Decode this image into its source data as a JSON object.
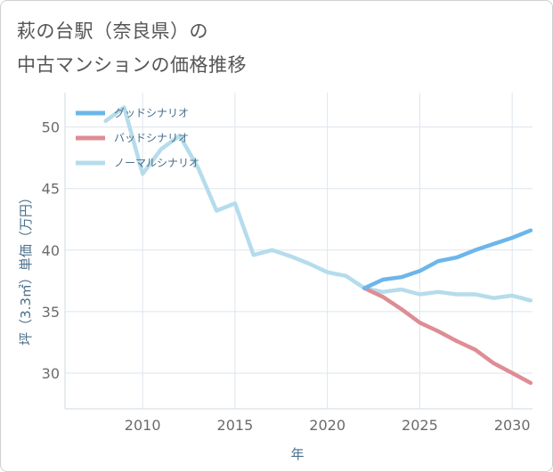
{
  "title_line1": "萩の台駅（奈良県）の",
  "title_line2": "中古マンションの価格推移",
  "chart_data": {
    "type": "line",
    "xlabel": "年",
    "ylabel": "坪（3.3㎡）単価（万円）",
    "xlim": [
      2005.8,
      2031.1
    ],
    "ylim": [
      27.1,
      52.8
    ],
    "xticks": [
      2010,
      2015,
      2020,
      2025,
      2030
    ],
    "yticks": [
      30,
      35,
      40,
      45,
      50
    ],
    "grid": true,
    "legend_position": "top-left",
    "series": [
      {
        "name": "グッドシナリオ",
        "color": "#6cb6ea",
        "x": [
          2022,
          2023,
          2024,
          2025,
          2026,
          2027,
          2028,
          2029,
          2030,
          2031
        ],
        "y": [
          36.9,
          37.6,
          37.8,
          38.3,
          39.1,
          39.4,
          40.0,
          40.5,
          41.0,
          41.6
        ]
      },
      {
        "name": "バッドシナリオ",
        "color": "#de8d95",
        "x": [
          2022,
          2023,
          2024,
          2025,
          2026,
          2027,
          2028,
          2029,
          2030,
          2031
        ],
        "y": [
          36.9,
          36.2,
          35.2,
          34.1,
          33.4,
          32.6,
          31.9,
          30.8,
          30.0,
          29.2
        ]
      },
      {
        "name": "ノーマルシナリオ",
        "color": "#b5dcec",
        "x": [
          2008,
          2009,
          2010,
          2011,
          2012,
          2013,
          2014,
          2015,
          2016,
          2017,
          2018,
          2019,
          2020,
          2021,
          2022,
          2023,
          2024,
          2025,
          2026,
          2027,
          2028,
          2029,
          2030,
          2031
        ],
        "y": [
          50.5,
          51.6,
          46.2,
          48.2,
          49.3,
          46.7,
          43.2,
          43.8,
          39.6,
          40.0,
          39.5,
          38.9,
          38.2,
          37.9,
          36.9,
          36.6,
          36.8,
          36.4,
          36.6,
          36.4,
          36.4,
          36.1,
          36.3,
          35.9
        ]
      }
    ]
  }
}
